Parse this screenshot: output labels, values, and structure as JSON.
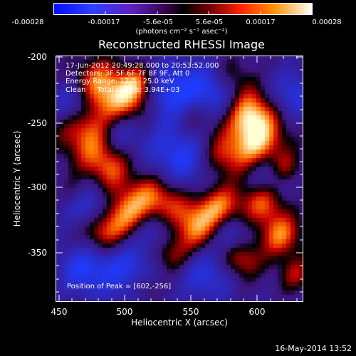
{
  "colorbar": {
    "tick_labels": [
      "-0.00028",
      "-0.00017",
      "-5.6e-05",
      "5.6e-05",
      "0.00017",
      "0.00028"
    ],
    "unit_label": "(photons cm⁻² s⁻¹ asec⁻²)"
  },
  "plot": {
    "title": "Reconstructed RHESSI Image",
    "xlabel": "Heliocentric X (arcsec)",
    "ylabel": "Heliocentric Y (arcsec)",
    "x_ticks": [
      "450",
      "500",
      "550",
      "600"
    ],
    "y_ticks": [
      "-200",
      "-250",
      "-300",
      "-350"
    ],
    "xlim": [
      447,
      635
    ],
    "ylim": [
      -392,
      -195
    ]
  },
  "overlay": {
    "time_range": "17-Jun-2012 20:49:28.000 to 20:53:52.000",
    "detectors": "Detectors: 3F 5F 6F 7F 8F 9F, Att 0",
    "energy": "Energy Range: 12.0 - 25.0 keV",
    "clean": "Clean     Total counts: 3.94E+03",
    "peak": "Position of Peak = [602,-256]"
  },
  "footer": {
    "date": "16-May-2014 13:52"
  },
  "colors": {
    "negative": "#2040ff",
    "zero": "#000000",
    "positive": "#ff2000",
    "peak": "#ffffd0"
  }
}
